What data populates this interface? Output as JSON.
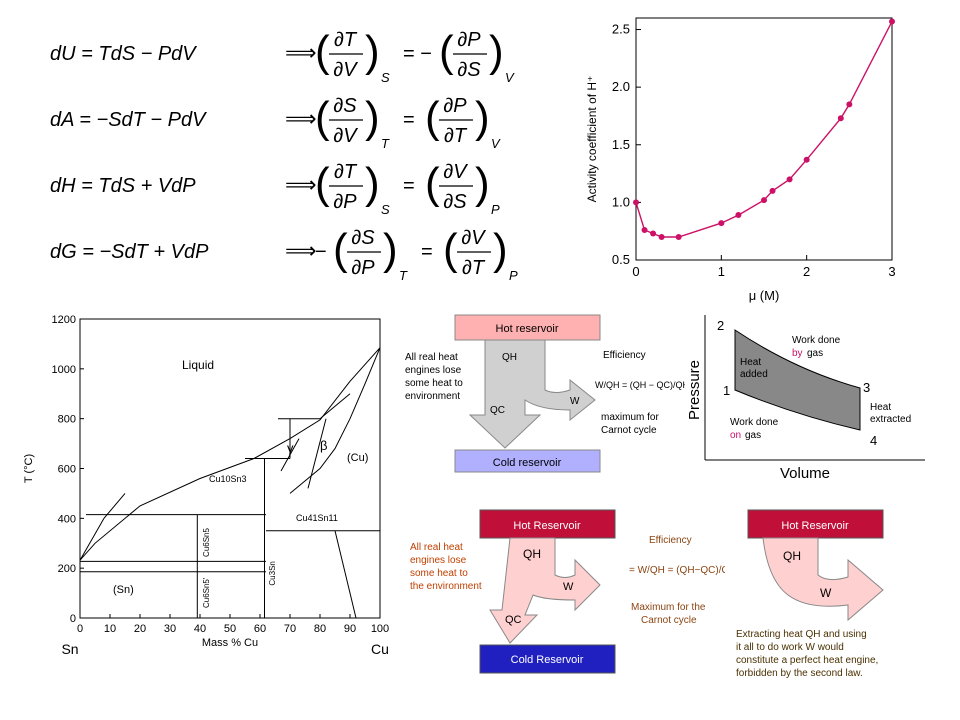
{
  "equations": [
    {
      "lhs": "dU = TdS − PdV",
      "arrow": "⟹",
      "leftNum": "∂T",
      "leftDen": "∂V",
      "leftSub": "S",
      "sign": "= −",
      "rightNum": "∂P",
      "rightDen": "∂S",
      "rightSub": "V",
      "leftSign": ""
    },
    {
      "lhs": "dA = −SdT − PdV",
      "arrow": "⟹",
      "leftNum": "∂S",
      "leftDen": "∂V",
      "leftSub": "T",
      "sign": "=",
      "rightNum": "∂P",
      "rightDen": "∂T",
      "rightSub": "V",
      "leftSign": ""
    },
    {
      "lhs": "dH = TdS + VdP",
      "arrow": "⟹",
      "leftNum": "∂T",
      "leftDen": "∂P",
      "leftSub": "S",
      "sign": "=",
      "rightNum": "∂V",
      "rightDen": "∂S",
      "rightSub": "P",
      "leftSign": ""
    },
    {
      "lhs": "dG = −SdT + VdP",
      "arrow": "⟹",
      "leftNum": "∂S",
      "leftDen": "∂P",
      "leftSub": "T",
      "sign": "=",
      "rightNum": "∂V",
      "rightDen": "∂T",
      "rightSub": "P",
      "leftSign": "−"
    }
  ],
  "chart_data": {
    "type": "scatter",
    "xlabel": "μ (M)",
    "ylabel": "Activity coefficient of H⁺",
    "xlim": [
      0,
      3
    ],
    "ylim": [
      0.5,
      2.6
    ],
    "xticks": [
      "0",
      "1",
      "2",
      "3"
    ],
    "yticks": [
      "0.5",
      "1.0",
      "1.5",
      "2.0",
      "2.5"
    ],
    "points": [
      {
        "x": 0.0,
        "y": 1.0
      },
      {
        "x": 0.1,
        "y": 0.76
      },
      {
        "x": 0.2,
        "y": 0.73
      },
      {
        "x": 0.3,
        "y": 0.7
      },
      {
        "x": 0.5,
        "y": 0.7
      },
      {
        "x": 1.0,
        "y": 0.82
      },
      {
        "x": 1.2,
        "y": 0.89
      },
      {
        "x": 1.5,
        "y": 1.02
      },
      {
        "x": 1.6,
        "y": 1.1
      },
      {
        "x": 1.8,
        "y": 1.2
      },
      {
        "x": 2.0,
        "y": 1.37
      },
      {
        "x": 2.4,
        "y": 1.73
      },
      {
        "x": 2.5,
        "y": 1.85
      },
      {
        "x": 3.0,
        "y": 2.57
      }
    ],
    "color": "#cc1166"
  },
  "phase": {
    "ylabel": "T (°C)",
    "xlabel": "Mass % Cu",
    "left_end": "Sn",
    "right_end": "Cu",
    "xticks": [
      "0",
      "10",
      "20",
      "30",
      "40",
      "50",
      "60",
      "70",
      "80",
      "90",
      "100"
    ],
    "yticks": [
      "0",
      "200",
      "400",
      "600",
      "800",
      "1000",
      "1200"
    ],
    "labels": {
      "liquid": "Liquid",
      "gamma": "γ",
      "beta": "β",
      "cu": "(Cu)",
      "sn": "(Sn)",
      "cu10sn3": "Cu10Sn3",
      "cu41sn11": "Cu41Sn11",
      "cu6sn5": "Cu6Sn5",
      "cu6sn5p": "Cu6Sn5'",
      "cu3sn": "Cu3Sn"
    }
  },
  "engine1": {
    "hot": "Hot reservoir",
    "cold": "Cold reservoir",
    "qh": "QH",
    "qc": "QC",
    "w": "W",
    "note": [
      "All real heat",
      "engines lose",
      "some heat to",
      "environment"
    ],
    "eff_title": "Efficiency",
    "eff_eq": "W/QH = (QH − QC)/QH",
    "eff_note": [
      "maximum for",
      "Carnot cycle"
    ]
  },
  "pv": {
    "ylabel": "Pressure",
    "xlabel": "Volume",
    "points": [
      "1",
      "2",
      "3",
      "4"
    ],
    "heat_added": [
      "Heat",
      "added"
    ],
    "heat_extracted": [
      "Heat",
      "extracted"
    ],
    "work_by": "Work done",
    "by": "by",
    "gas": "gas",
    "work_on": "Work done",
    "on": "on",
    "gas2": "gas"
  },
  "engine2": {
    "hot": "Hot Reservoir",
    "cold": "Cold Reservoir",
    "qh": "QH",
    "qc": "QC",
    "w": "W",
    "note": [
      "All real heat",
      "engines lose",
      "some heat to",
      "the environment"
    ],
    "eff_title": "Efficiency",
    "eff_note": [
      "Maximum for the",
      "Carnot cycle"
    ]
  },
  "engine3": {
    "hot": "Hot Reservoir",
    "qh": "QH",
    "w": "W",
    "note": [
      "Extracting heat QH and using",
      "it all to do work W would",
      "constitute a perfect heat engine,",
      "forbidden by the second law."
    ]
  }
}
